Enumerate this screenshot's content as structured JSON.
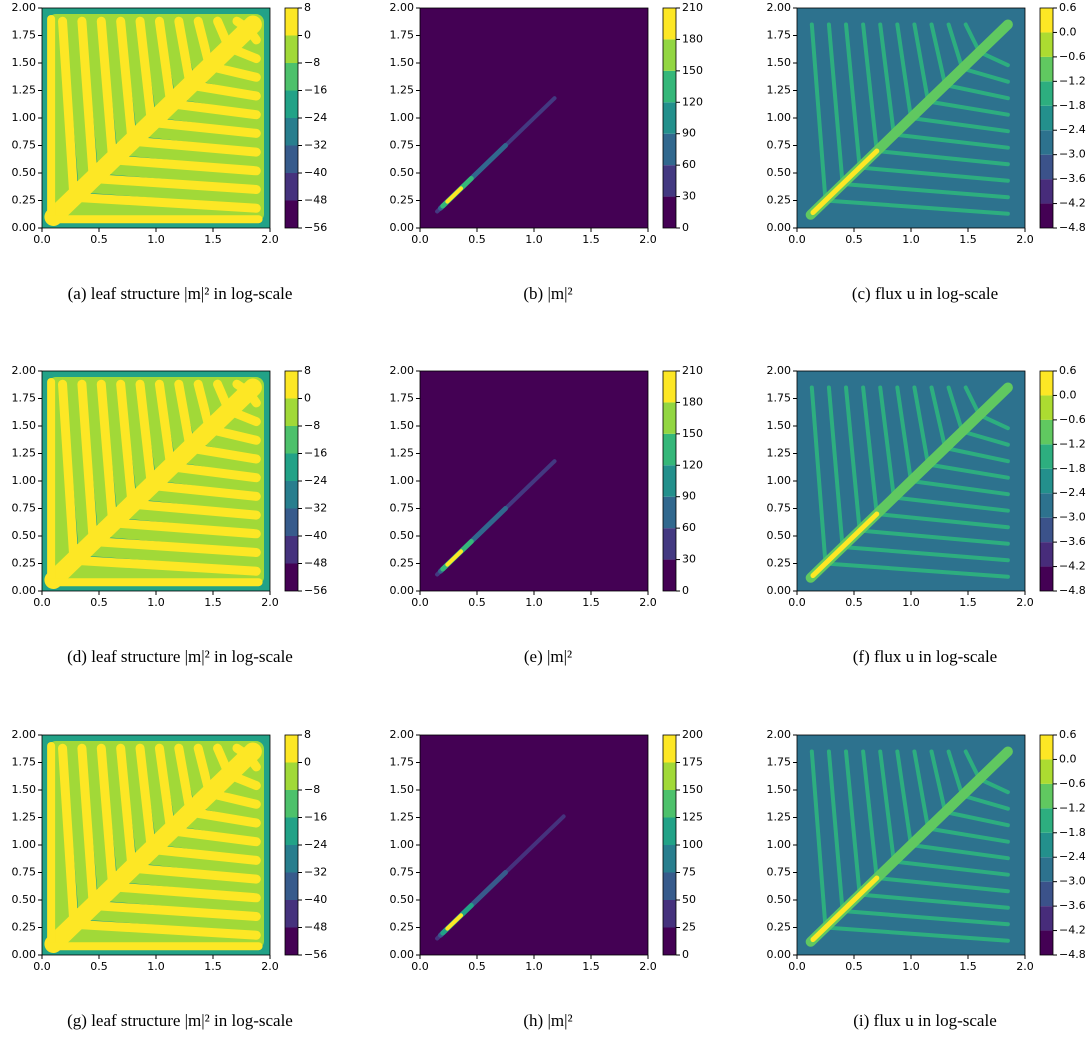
{
  "chart_data": [
    {
      "type": "contour",
      "caption": "(a) leaf structure |m|² in log-scale",
      "colormap": "viridis",
      "xlim": [
        0,
        2
      ],
      "xticks": [
        {
          "value": 0,
          "label": "0.0"
        },
        {
          "value": 0.5,
          "label": "0.5"
        },
        {
          "value": 1,
          "label": "1.0"
        },
        {
          "value": 1.5,
          "label": "1.5"
        },
        {
          "value": 2,
          "label": "2.0"
        }
      ],
      "ylim": [
        0,
        2
      ],
      "yticks": [
        {
          "value": 0,
          "label": "0.00"
        },
        {
          "value": 0.25,
          "label": "0.25"
        },
        {
          "value": 0.5,
          "label": "0.50"
        },
        {
          "value": 0.75,
          "label": "0.75"
        },
        {
          "value": 1,
          "label": "1.00"
        },
        {
          "value": 1.25,
          "label": "1.25"
        },
        {
          "value": 1.5,
          "label": "1.50"
        },
        {
          "value": 1.75,
          "label": "1.75"
        },
        {
          "value": 2,
          "label": "2.00"
        }
      ],
      "clim": [
        -56,
        8
      ],
      "cticks": [
        {
          "value": -56,
          "label": "−56"
        },
        {
          "value": -48,
          "label": "−48"
        },
        {
          "value": -40,
          "label": "−40"
        },
        {
          "value": -32,
          "label": "−32"
        },
        {
          "value": -24,
          "label": "−24"
        },
        {
          "value": -16,
          "label": "−16"
        },
        {
          "value": -8,
          "label": "−8"
        },
        0,
        8
      ]
    },
    {
      "type": "contour",
      "caption": "(b) |m|²",
      "colormap": "viridis",
      "xlim": [
        0,
        2
      ],
      "xticks": [
        {
          "value": 0,
          "label": "0.0"
        },
        {
          "value": 0.5,
          "label": "0.5"
        },
        {
          "value": 1,
          "label": "1.0"
        },
        {
          "value": 1.5,
          "label": "1.5"
        },
        {
          "value": 2,
          "label": "2.0"
        }
      ],
      "ylim": [
        0,
        2
      ],
      "yticks": [
        {
          "value": 0,
          "label": "0.00"
        },
        {
          "value": 0.25,
          "label": "0.25"
        },
        {
          "value": 0.5,
          "label": "0.50"
        },
        {
          "value": 0.75,
          "label": "0.75"
        },
        {
          "value": 1,
          "label": "1.00"
        },
        {
          "value": 1.25,
          "label": "1.25"
        },
        {
          "value": 1.5,
          "label": "1.50"
        },
        {
          "value": 1.75,
          "label": "1.75"
        },
        {
          "value": 2,
          "label": "2.00"
        }
      ],
      "clim": [
        0,
        210
      ],
      "cticks": [
        0,
        30,
        60,
        90,
        120,
        150,
        180,
        210
      ]
    },
    {
      "type": "contour",
      "caption": "(c) flux u in log-scale",
      "colormap": "viridis",
      "xlim": [
        0,
        2
      ],
      "xticks": [
        {
          "value": 0,
          "label": "0.0"
        },
        {
          "value": 0.5,
          "label": "0.5"
        },
        {
          "value": 1,
          "label": "1.0"
        },
        {
          "value": 1.5,
          "label": "1.5"
        },
        {
          "value": 2,
          "label": "2.0"
        }
      ],
      "ylim": [
        0,
        2
      ],
      "yticks": [
        {
          "value": 0,
          "label": "0.00"
        },
        {
          "value": 0.25,
          "label": "0.25"
        },
        {
          "value": 0.5,
          "label": "0.50"
        },
        {
          "value": 0.75,
          "label": "0.75"
        },
        {
          "value": 1,
          "label": "1.00"
        },
        {
          "value": 1.25,
          "label": "1.25"
        },
        {
          "value": 1.5,
          "label": "1.50"
        },
        {
          "value": 1.75,
          "label": "1.75"
        },
        {
          "value": 2,
          "label": "2.00"
        }
      ],
      "clim": [
        -4.8,
        0.6
      ],
      "cticks": [
        {
          "value": -4.8,
          "label": "−4.8"
        },
        {
          "value": -4.2,
          "label": "−4.2"
        },
        {
          "value": -3.6,
          "label": "−3.6"
        },
        {
          "value": -3.0,
          "label": "−3.0"
        },
        {
          "value": -2.4,
          "label": "−2.4"
        },
        {
          "value": -1.8,
          "label": "−1.8"
        },
        {
          "value": -1.2,
          "label": "−1.2"
        },
        {
          "value": -0.6,
          "label": "−0.6"
        },
        {
          "value": 0,
          "label": "0.0"
        },
        0.6
      ]
    },
    {
      "type": "contour",
      "caption": "(d) leaf structure |m|² in log-scale",
      "colormap": "viridis",
      "xlim": [
        0,
        2
      ],
      "xticks": [
        {
          "value": 0,
          "label": "0.0"
        },
        {
          "value": 0.5,
          "label": "0.5"
        },
        {
          "value": 1,
          "label": "1.0"
        },
        {
          "value": 1.5,
          "label": "1.5"
        },
        {
          "value": 2,
          "label": "2.0"
        }
      ],
      "ylim": [
        0,
        2
      ],
      "yticks": [
        {
          "value": 0,
          "label": "0.00"
        },
        {
          "value": 0.25,
          "label": "0.25"
        },
        {
          "value": 0.5,
          "label": "0.50"
        },
        {
          "value": 0.75,
          "label": "0.75"
        },
        {
          "value": 1,
          "label": "1.00"
        },
        {
          "value": 1.25,
          "label": "1.25"
        },
        {
          "value": 1.5,
          "label": "1.50"
        },
        {
          "value": 1.75,
          "label": "1.75"
        },
        {
          "value": 2,
          "label": "2.00"
        }
      ],
      "clim": [
        -56,
        8
      ],
      "cticks": [
        {
          "value": -56,
          "label": "−56"
        },
        {
          "value": -48,
          "label": "−48"
        },
        {
          "value": -40,
          "label": "−40"
        },
        {
          "value": -32,
          "label": "−32"
        },
        {
          "value": -24,
          "label": "−24"
        },
        {
          "value": -16,
          "label": "−16"
        },
        {
          "value": -8,
          "label": "−8"
        },
        0,
        8
      ]
    },
    {
      "type": "contour",
      "caption": "(e) |m|²",
      "colormap": "viridis",
      "xlim": [
        0,
        2
      ],
      "xticks": [
        {
          "value": 0,
          "label": "0.0"
        },
        {
          "value": 0.5,
          "label": "0.5"
        },
        {
          "value": 1,
          "label": "1.0"
        },
        {
          "value": 1.5,
          "label": "1.5"
        },
        {
          "value": 2,
          "label": "2.0"
        }
      ],
      "ylim": [
        0,
        2
      ],
      "yticks": [
        {
          "value": 0,
          "label": "0.00"
        },
        {
          "value": 0.25,
          "label": "0.25"
        },
        {
          "value": 0.5,
          "label": "0.50"
        },
        {
          "value": 0.75,
          "label": "0.75"
        },
        {
          "value": 1,
          "label": "1.00"
        },
        {
          "value": 1.25,
          "label": "1.25"
        },
        {
          "value": 1.5,
          "label": "1.50"
        },
        {
          "value": 1.75,
          "label": "1.75"
        },
        {
          "value": 2,
          "label": "2.00"
        }
      ],
      "clim": [
        0,
        210
      ],
      "cticks": [
        0,
        30,
        60,
        90,
        120,
        150,
        180,
        210
      ]
    },
    {
      "type": "contour",
      "caption": "(f) flux u in log-scale",
      "colormap": "viridis",
      "xlim": [
        0,
        2
      ],
      "xticks": [
        {
          "value": 0,
          "label": "0.0"
        },
        {
          "value": 0.5,
          "label": "0.5"
        },
        {
          "value": 1,
          "label": "1.0"
        },
        {
          "value": 1.5,
          "label": "1.5"
        },
        {
          "value": 2,
          "label": "2.0"
        }
      ],
      "ylim": [
        0,
        2
      ],
      "yticks": [
        {
          "value": 0,
          "label": "0.00"
        },
        {
          "value": 0.25,
          "label": "0.25"
        },
        {
          "value": 0.5,
          "label": "0.50"
        },
        {
          "value": 0.75,
          "label": "0.75"
        },
        {
          "value": 1,
          "label": "1.00"
        },
        {
          "value": 1.25,
          "label": "1.25"
        },
        {
          "value": 1.5,
          "label": "1.50"
        },
        {
          "value": 1.75,
          "label": "1.75"
        },
        {
          "value": 2,
          "label": "2.00"
        }
      ],
      "clim": [
        -4.8,
        0.6
      ],
      "cticks": [
        {
          "value": -4.8,
          "label": "−4.8"
        },
        {
          "value": -4.2,
          "label": "−4.2"
        },
        {
          "value": -3.6,
          "label": "−3.6"
        },
        {
          "value": -3.0,
          "label": "−3.0"
        },
        {
          "value": -2.4,
          "label": "−2.4"
        },
        {
          "value": -1.8,
          "label": "−1.8"
        },
        {
          "value": -1.2,
          "label": "−1.2"
        },
        {
          "value": -0.6,
          "label": "−0.6"
        },
        {
          "value": 0,
          "label": "0.0"
        },
        0.6
      ]
    },
    {
      "type": "contour",
      "caption": "(g) leaf structure |m|² in log-scale",
      "colormap": "viridis",
      "xlim": [
        0,
        2
      ],
      "xticks": [
        {
          "value": 0,
          "label": "0.0"
        },
        {
          "value": 0.5,
          "label": "0.5"
        },
        {
          "value": 1,
          "label": "1.0"
        },
        {
          "value": 1.5,
          "label": "1.5"
        },
        {
          "value": 2,
          "label": "2.0"
        }
      ],
      "ylim": [
        0,
        2
      ],
      "yticks": [
        {
          "value": 0,
          "label": "0.00"
        },
        {
          "value": 0.25,
          "label": "0.25"
        },
        {
          "value": 0.5,
          "label": "0.50"
        },
        {
          "value": 0.75,
          "label": "0.75"
        },
        {
          "value": 1,
          "label": "1.00"
        },
        {
          "value": 1.25,
          "label": "1.25"
        },
        {
          "value": 1.5,
          "label": "1.50"
        },
        {
          "value": 1.75,
          "label": "1.75"
        },
        {
          "value": 2,
          "label": "2.00"
        }
      ],
      "clim": [
        -56,
        8
      ],
      "cticks": [
        {
          "value": -56,
          "label": "−56"
        },
        {
          "value": -48,
          "label": "−48"
        },
        {
          "value": -40,
          "label": "−40"
        },
        {
          "value": -32,
          "label": "−32"
        },
        {
          "value": -24,
          "label": "−24"
        },
        {
          "value": -16,
          "label": "−16"
        },
        {
          "value": -8,
          "label": "−8"
        },
        0,
        8
      ]
    },
    {
      "type": "contour",
      "caption": "(h) |m|²",
      "colormap": "viridis",
      "xlim": [
        0,
        2
      ],
      "xticks": [
        {
          "value": 0,
          "label": "0.0"
        },
        {
          "value": 0.5,
          "label": "0.5"
        },
        {
          "value": 1,
          "label": "1.0"
        },
        {
          "value": 1.5,
          "label": "1.5"
        },
        {
          "value": 2,
          "label": "2.0"
        }
      ],
      "ylim": [
        0,
        2
      ],
      "yticks": [
        {
          "value": 0,
          "label": "0.00"
        },
        {
          "value": 0.25,
          "label": "0.25"
        },
        {
          "value": 0.5,
          "label": "0.50"
        },
        {
          "value": 0.75,
          "label": "0.75"
        },
        {
          "value": 1,
          "label": "1.00"
        },
        {
          "value": 1.25,
          "label": "1.25"
        },
        {
          "value": 1.5,
          "label": "1.50"
        },
        {
          "value": 1.75,
          "label": "1.75"
        },
        {
          "value": 2,
          "label": "2.00"
        }
      ],
      "clim": [
        0,
        200
      ],
      "cticks": [
        0,
        25,
        50,
        75,
        100,
        125,
        150,
        175,
        200
      ]
    },
    {
      "type": "contour",
      "caption": "(i) flux u in log-scale",
      "colormap": "viridis",
      "xlim": [
        0,
        2
      ],
      "xticks": [
        {
          "value": 0,
          "label": "0.0"
        },
        {
          "value": 0.5,
          "label": "0.5"
        },
        {
          "value": 1,
          "label": "1.0"
        },
        {
          "value": 1.5,
          "label": "1.5"
        },
        {
          "value": 2,
          "label": "2.0"
        }
      ],
      "ylim": [
        0,
        2
      ],
      "yticks": [
        {
          "value": 0,
          "label": "0.00"
        },
        {
          "value": 0.25,
          "label": "0.25"
        },
        {
          "value": 0.5,
          "label": "0.50"
        },
        {
          "value": 0.75,
          "label": "0.75"
        },
        {
          "value": 1,
          "label": "1.00"
        },
        {
          "value": 1.25,
          "label": "1.25"
        },
        {
          "value": 1.5,
          "label": "1.50"
        },
        {
          "value": 1.75,
          "label": "1.75"
        },
        {
          "value": 2,
          "label": "2.00"
        }
      ],
      "clim": [
        -4.8,
        0.6
      ],
      "cticks": [
        {
          "value": -4.8,
          "label": "−4.8"
        },
        {
          "value": -4.2,
          "label": "−4.2"
        },
        {
          "value": -3.6,
          "label": "−3.6"
        },
        {
          "value": -3.0,
          "label": "−3.0"
        },
        {
          "value": -2.4,
          "label": "−2.4"
        },
        {
          "value": -1.8,
          "label": "−1.8"
        },
        {
          "value": -1.2,
          "label": "−1.2"
        },
        {
          "value": -0.6,
          "label": "−0.6"
        },
        {
          "value": 0,
          "label": "0.0"
        },
        0.6
      ]
    }
  ]
}
